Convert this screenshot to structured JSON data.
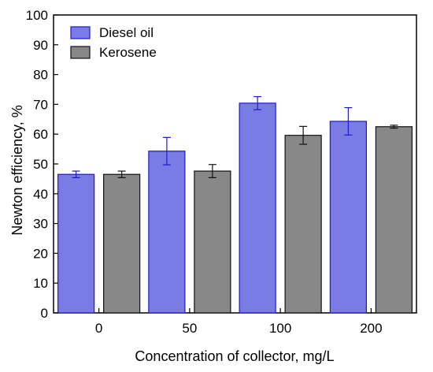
{
  "chart_data": {
    "type": "bar",
    "categories": [
      "0",
      "50",
      "100",
      "200"
    ],
    "series": [
      {
        "name": "Diesel oil",
        "color": "#7b7be6",
        "edge_color": "#1c1cc8",
        "error_color": "#1c1cc8",
        "values": [
          46.5,
          54.3,
          70.4,
          64.3
        ],
        "errors": [
          1.1,
          4.6,
          2.2,
          4.6
        ]
      },
      {
        "name": "Kerosene",
        "color": "#888888",
        "edge_color": "#111111",
        "error_color": "#111111",
        "values": [
          46.5,
          47.6,
          59.6,
          62.5
        ],
        "errors": [
          1.1,
          2.2,
          3.0,
          0.5
        ]
      }
    ],
    "xlabel": "Concentration of collector, mg/L",
    "ylabel": "Newton efficiency, %",
    "ylim": [
      0,
      100
    ],
    "yticks": [
      "0",
      "10",
      "20",
      "30",
      "40",
      "50",
      "60",
      "70",
      "80",
      "90",
      "100"
    ],
    "legend_position": "top-left",
    "grid": false
  }
}
